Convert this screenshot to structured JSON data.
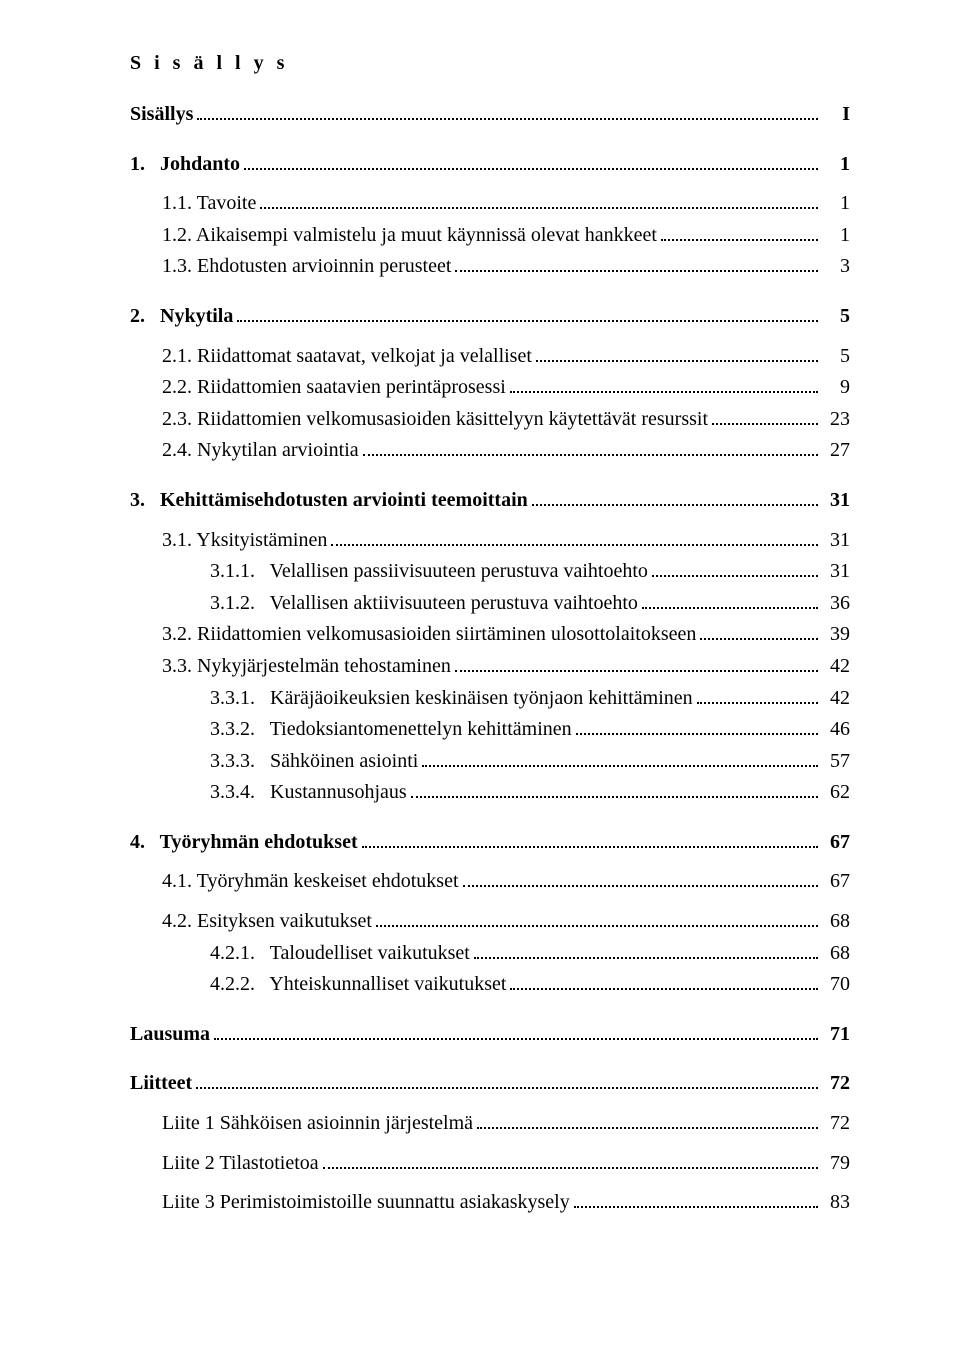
{
  "title_spaced": "S i s ä l l y s",
  "toc": [
    {
      "indent": 0,
      "bold": true,
      "text": "Sisällys",
      "page": "I",
      "gap_after": "md"
    },
    {
      "indent": 0,
      "bold": true,
      "text": "1.   Johdanto",
      "page": "1",
      "gap_after": "sm"
    },
    {
      "indent": 1,
      "bold": false,
      "text": "1.1. Tavoite",
      "page": "1"
    },
    {
      "indent": 1,
      "bold": false,
      "text": "1.2. Aikaisempi valmistelu ja muut käynnissä olevat hankkeet",
      "page": "1"
    },
    {
      "indent": 1,
      "bold": false,
      "text": "1.3. Ehdotusten arvioinnin perusteet",
      "page": "3",
      "gap_after": "md"
    },
    {
      "indent": 0,
      "bold": true,
      "text": "2.   Nykytila",
      "page": "5",
      "gap_after": "sm"
    },
    {
      "indent": 1,
      "bold": false,
      "text": "2.1. Riidattomat saatavat, velkojat ja velalliset",
      "page": "5"
    },
    {
      "indent": 1,
      "bold": false,
      "text": "2.2. Riidattomien saatavien perintäprosessi",
      "page": "9"
    },
    {
      "indent": 1,
      "bold": false,
      "text": "2.3. Riidattomien velkomusasioiden käsittelyyn käytettävät resurssit",
      "page": "23"
    },
    {
      "indent": 1,
      "bold": false,
      "text": "2.4. Nykytilan arviointia",
      "page": "27",
      "gap_after": "md"
    },
    {
      "indent": 0,
      "bold": true,
      "text": "3.   Kehittämisehdotusten arviointi teemoittain",
      "page": "31",
      "gap_after": "sm"
    },
    {
      "indent": 1,
      "bold": false,
      "text": "3.1. Yksityistäminen",
      "page": "31"
    },
    {
      "indent": 2,
      "bold": false,
      "text": "3.1.1.   Velallisen passiivisuuteen perustuva vaihtoehto",
      "page": "31"
    },
    {
      "indent": 2,
      "bold": false,
      "text": "3.1.2.   Velallisen aktiivisuuteen perustuva vaihtoehto",
      "page": "36"
    },
    {
      "indent": 1,
      "bold": false,
      "text": "3.2. Riidattomien velkomusasioiden siirtäminen ulosottolaitokseen",
      "page": "39"
    },
    {
      "indent": 1,
      "bold": false,
      "text": "3.3. Nykyjärjestelmän tehostaminen",
      "page": "42"
    },
    {
      "indent": 2,
      "bold": false,
      "text": "3.3.1.   Käräjäoikeuksien keskinäisen työnjaon kehittäminen",
      "page": "42"
    },
    {
      "indent": 2,
      "bold": false,
      "text": "3.3.2.   Tiedoksiantomenettelyn kehittäminen",
      "page": "46"
    },
    {
      "indent": 2,
      "bold": false,
      "text": "3.3.3.   Sähköinen asiointi",
      "page": "57"
    },
    {
      "indent": 2,
      "bold": false,
      "text": "3.3.4.   Kustannusohjaus",
      "page": "62",
      "gap_after": "md"
    },
    {
      "indent": 0,
      "bold": true,
      "text": "4.   Työryhmän ehdotukset",
      "page": "67",
      "gap_after": "sm"
    },
    {
      "indent": 1,
      "bold": false,
      "text": "4.1. Työryhmän keskeiset ehdotukset",
      "page": "67",
      "gap_after": "sm"
    },
    {
      "indent": 1,
      "bold": false,
      "text": "4.2. Esityksen vaikutukset",
      "page": "68"
    },
    {
      "indent": 2,
      "bold": false,
      "text": "4.2.1.   Taloudelliset vaikutukset",
      "page": "68"
    },
    {
      "indent": 2,
      "bold": false,
      "text": "4.2.2.   Yhteiskunnalliset vaikutukset",
      "page": "70",
      "gap_after": "md"
    },
    {
      "indent": 0,
      "bold": true,
      "text": "Lausuma",
      "page": "71",
      "gap_after": "md"
    },
    {
      "indent": 0,
      "bold": true,
      "text": "Liitteet",
      "page": "72",
      "gap_after": "sm"
    },
    {
      "indent": 1,
      "bold": false,
      "text": "Liite 1 Sähköisen asioinnin järjestelmä",
      "page": "72",
      "gap_after": "sm"
    },
    {
      "indent": 1,
      "bold": false,
      "text": "Liite 2 Tilastotietoa",
      "page": "79",
      "gap_after": "sm"
    },
    {
      "indent": 1,
      "bold": false,
      "text": "Liite 3 Perimistoimistoille suunnattu asiakaskysely",
      "page": "83"
    }
  ]
}
